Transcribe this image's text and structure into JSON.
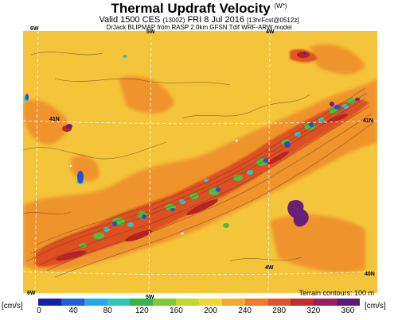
{
  "title": "Thermal Updraft Velocity",
  "title_units": "(W*)",
  "subtitle_main": "Valid 1500 CES",
  "subtitle_local": "(1300Z)",
  "subtitle_date": "FRI 8 Jul 2016",
  "subtitle_fcst": "[13hrFcst@0512z]",
  "credit": "DrJack BLIPMAP from RASP 2.0km GFSN Tdif WRF-ARW model",
  "map_labels": {
    "top_6w": "6W",
    "top_5w": "5W",
    "top_4w": "4W",
    "mid_4w": "4W",
    "bottom_6w": "6W",
    "bottom_5w": "5W",
    "left_41n": "41N",
    "right_41n": "41N",
    "right_40n": "40N"
  },
  "terrain_note": "Terrain contours: 100 m",
  "colorbar": {
    "unit_left": "[cm/s]",
    "unit_right": "[cm/s]",
    "ticks": [
      "0",
      "40",
      "80",
      "120",
      "160",
      "200",
      "240",
      "280",
      "320",
      "360"
    ],
    "colors": [
      "#1520a8",
      "#1e60d8",
      "#27a8e8",
      "#2bc7b8",
      "#33b54a",
      "#7acc30",
      "#c5d82a",
      "#f2d82a",
      "#f4a830",
      "#ef7a26",
      "#e4502a",
      "#c82a2a",
      "#9a1f5c",
      "#5e1a7a"
    ]
  },
  "map_colors": {
    "background": "#f4c43a",
    "orange": "#ef8f2c",
    "red": "#dd4a24",
    "darkred": "#b82424",
    "green": "#4fbd3e",
    "cyan": "#35c3c8",
    "blue": "#2452d0",
    "purple": "#6a1f7a"
  }
}
